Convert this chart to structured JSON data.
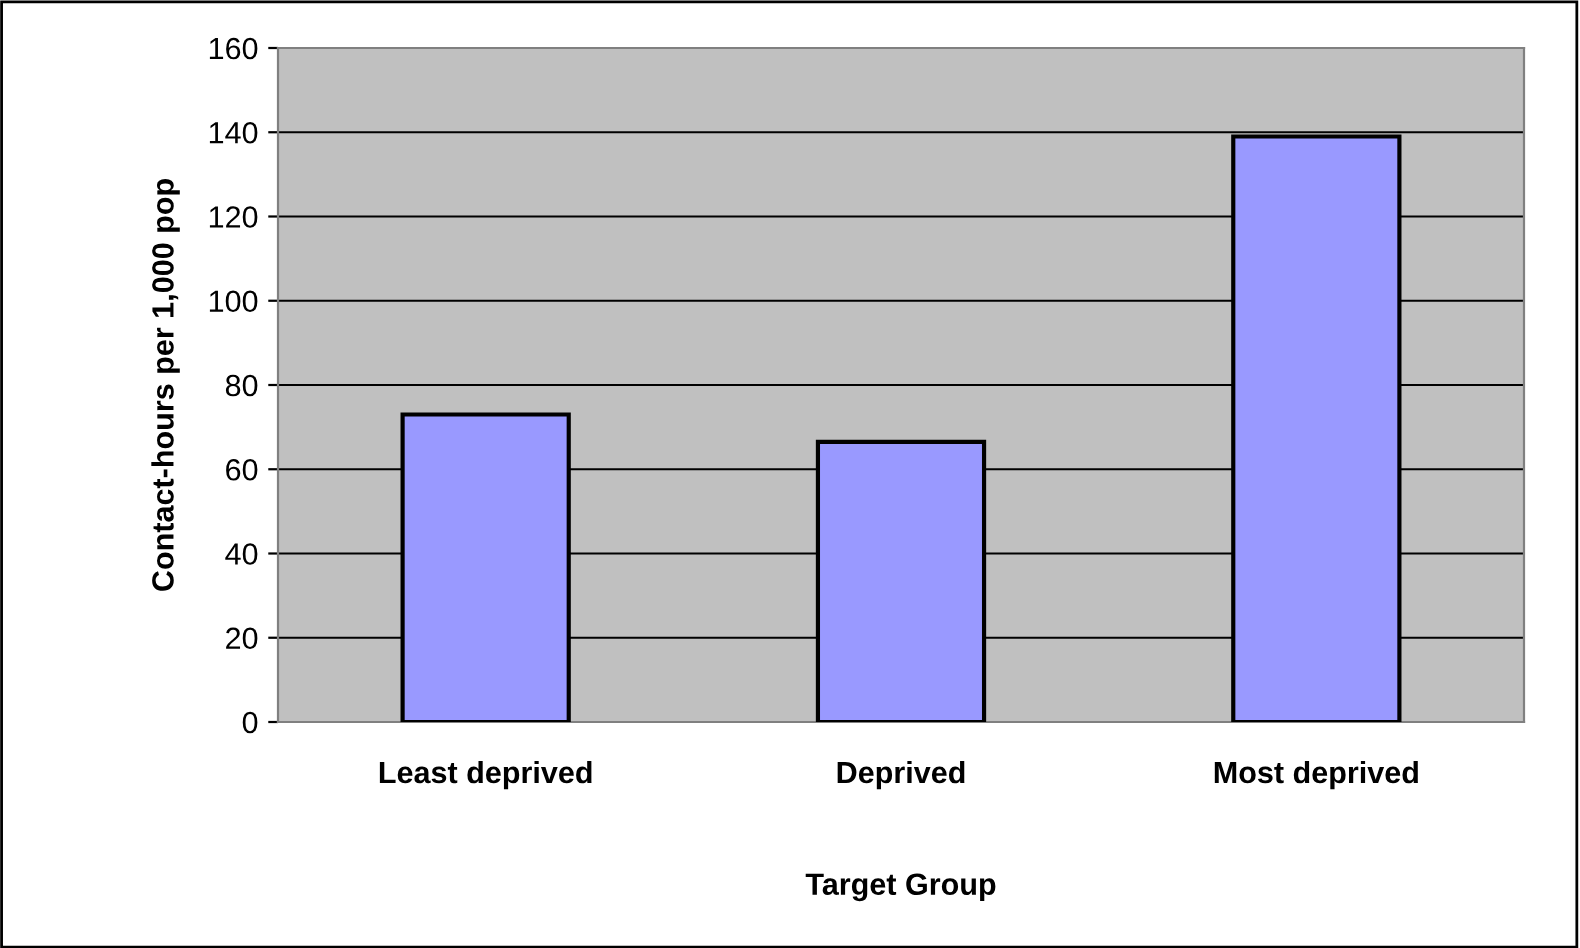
{
  "chart_data": {
    "type": "bar",
    "xlabel": "Target Group",
    "ylabel": "Contact-hours per 1,000 pop",
    "categories": [
      "Least deprived",
      "Deprived",
      "Most deprived"
    ],
    "values": [
      73,
      66.5,
      139
    ],
    "color": "#9999ff",
    "ylim": [
      0,
      160
    ],
    "yticks": [
      0,
      20,
      40,
      60,
      80,
      100,
      120,
      140,
      160
    ],
    "grid": "y"
  }
}
